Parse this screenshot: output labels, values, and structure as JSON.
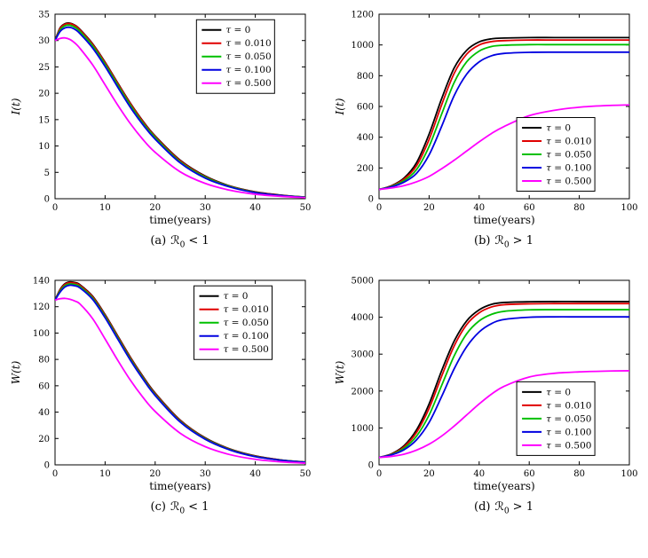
{
  "page": {
    "background": "#ffffff"
  },
  "colors": {
    "tau0": "#000000",
    "tau010": "#e00000",
    "tau050": "#00c000",
    "tau100": "#0000e0",
    "tau500": "#ff00ff"
  },
  "chart_data": [
    {
      "id": "a",
      "type": "line",
      "caption": {
        "prefix": "(a)",
        "symbol": "ℛ",
        "sub": "0",
        "rest": "< 1"
      },
      "xlabel": "time(years)",
      "ylabel": "I(t)",
      "xlim": [
        0,
        50
      ],
      "ylim": [
        0,
        35
      ],
      "xticks": [
        0,
        10,
        20,
        30,
        40,
        50
      ],
      "yticks": [
        0,
        5,
        10,
        15,
        20,
        25,
        30,
        35
      ],
      "legend": {
        "position": "top-right",
        "x": 0.565,
        "y": 0.03
      },
      "x": [
        0,
        1,
        2,
        3,
        4,
        5,
        7.5,
        10,
        12.5,
        15,
        17.5,
        20,
        25,
        30,
        35,
        40,
        45,
        50
      ],
      "series": [
        {
          "name": "τ = 0",
          "color": "#000000",
          "values": [
            30,
            32.4,
            33.2,
            33.3,
            32.9,
            32.1,
            29.4,
            25.9,
            22.0,
            18.2,
            14.8,
            11.9,
            7.3,
            4.3,
            2.4,
            1.3,
            0.7,
            0.3
          ]
        },
        {
          "name": "τ = 0.010",
          "color": "#e00000",
          "values": [
            30,
            32.3,
            33.1,
            33.2,
            32.8,
            32.0,
            29.3,
            25.8,
            21.9,
            18.1,
            14.7,
            11.8,
            7.2,
            4.2,
            2.35,
            1.25,
            0.65,
            0.3
          ]
        },
        {
          "name": "τ = 0.050",
          "color": "#00c000",
          "values": [
            30,
            32.0,
            32.8,
            32.9,
            32.5,
            31.7,
            29.0,
            25.5,
            21.6,
            17.8,
            14.4,
            11.6,
            7.0,
            4.1,
            2.3,
            1.2,
            0.6,
            0.3
          ]
        },
        {
          "name": "τ = 0.100",
          "color": "#0000e0",
          "values": [
            30,
            31.7,
            32.4,
            32.5,
            32.1,
            31.3,
            28.6,
            25.1,
            21.2,
            17.4,
            14.1,
            11.3,
            6.8,
            3.9,
            2.2,
            1.15,
            0.6,
            0.25
          ]
        },
        {
          "name": "τ = 0.500",
          "color": "#ff00ff",
          "values": [
            30,
            30.4,
            30.5,
            30.2,
            29.5,
            28.5,
            25.4,
            21.6,
            17.8,
            14.3,
            11.3,
            8.8,
            5.1,
            2.9,
            1.6,
            0.85,
            0.45,
            0.2
          ]
        }
      ]
    },
    {
      "id": "b",
      "type": "line",
      "caption": {
        "prefix": "(b)",
        "symbol": "ℛ",
        "sub": "0",
        "rest": "> 1"
      },
      "xlabel": "time(years)",
      "ylabel": "I(t)",
      "xlim": [
        0,
        100
      ],
      "ylim": [
        0,
        1200
      ],
      "xticks": [
        0,
        20,
        40,
        60,
        80,
        100
      ],
      "yticks": [
        0,
        200,
        400,
        600,
        800,
        1000,
        1200
      ],
      "legend": {
        "position": "right-lower",
        "x": 0.55,
        "y": 0.56
      },
      "x": [
        0,
        5,
        10,
        15,
        20,
        25,
        30,
        35,
        40,
        45,
        50,
        60,
        70,
        80,
        90,
        100
      ],
      "series": [
        {
          "name": "τ = 0",
          "color": "#000000",
          "values": [
            60,
            85,
            135,
            235,
            420,
            650,
            850,
            965,
            1020,
            1040,
            1045,
            1048,
            1048,
            1048,
            1048,
            1048
          ]
        },
        {
          "name": "τ = 0.010",
          "color": "#e00000",
          "values": [
            60,
            83,
            128,
            215,
            385,
            610,
            815,
            940,
            1000,
            1022,
            1028,
            1032,
            1032,
            1032,
            1032,
            1032
          ]
        },
        {
          "name": "τ = 0.050",
          "color": "#00c000",
          "values": [
            60,
            80,
            118,
            190,
            340,
            550,
            755,
            890,
            960,
            990,
            998,
            1002,
            1002,
            1002,
            1002,
            1002
          ]
        },
        {
          "name": "τ = 0.100",
          "color": "#0000e0",
          "values": [
            60,
            77,
            108,
            165,
            285,
            470,
            670,
            810,
            890,
            930,
            945,
            952,
            953,
            953,
            953,
            953
          ]
        },
        {
          "name": "τ = 0.500",
          "color": "#ff00ff",
          "values": [
            60,
            70,
            85,
            110,
            145,
            195,
            250,
            310,
            370,
            425,
            470,
            540,
            575,
            595,
            605,
            610
          ]
        }
      ]
    },
    {
      "id": "c",
      "type": "line",
      "caption": {
        "prefix": "(c)",
        "symbol": "ℛ",
        "sub": "0",
        "rest": "< 1"
      },
      "xlabel": "time(years)",
      "ylabel": "W(t)",
      "xlim": [
        0,
        50
      ],
      "ylim": [
        0,
        140
      ],
      "xticks": [
        0,
        10,
        20,
        30,
        40,
        50
      ],
      "yticks": [
        0,
        20,
        40,
        60,
        80,
        100,
        120,
        140
      ],
      "legend": {
        "position": "top-right",
        "x": 0.555,
        "y": 0.03
      },
      "x": [
        0,
        1,
        2,
        3,
        4,
        5,
        7.5,
        10,
        12.5,
        15,
        17.5,
        20,
        25,
        30,
        35,
        40,
        45,
        50
      ],
      "series": [
        {
          "name": "τ = 0",
          "color": "#000000",
          "values": [
            125,
            133,
            137.5,
            138.8,
            138.3,
            136.6,
            128,
            114,
            98,
            82,
            67.5,
            54.5,
            34,
            20.5,
            12,
            6.8,
            3.8,
            2.1
          ]
        },
        {
          "name": "τ = 0.010",
          "color": "#e00000",
          "values": [
            125,
            132.6,
            137,
            138.3,
            137.8,
            136.1,
            127.5,
            113.5,
            97.5,
            81.5,
            67,
            54,
            33.6,
            20.2,
            11.8,
            6.6,
            3.7,
            2.0
          ]
        },
        {
          "name": "τ = 0.050",
          "color": "#00c000",
          "values": [
            125,
            131.8,
            136,
            137.3,
            136.8,
            135.2,
            126.6,
            112.6,
            96.6,
            80.6,
            66.2,
            53.3,
            33,
            19.8,
            11.5,
            6.4,
            3.6,
            2.0
          ]
        },
        {
          "name": "τ = 0.100",
          "color": "#0000e0",
          "values": [
            125,
            131,
            135,
            136.3,
            135.8,
            134.2,
            125.6,
            111.6,
            95.6,
            79.7,
            65.4,
            52.6,
            32.5,
            19.4,
            11.2,
            6.2,
            3.5,
            1.9
          ]
        },
        {
          "name": "τ = 0.500",
          "color": "#ff00ff",
          "values": [
            125,
            126,
            126.3,
            125.6,
            124.2,
            122,
            111,
            95.5,
            79.5,
            64.5,
            51.5,
            40.5,
            24,
            13.8,
            7.7,
            4.2,
            2.3,
            1.3
          ]
        }
      ]
    },
    {
      "id": "d",
      "type": "line",
      "caption": {
        "prefix": "(d)",
        "symbol": "ℛ",
        "sub": "0",
        "rest": "> 1"
      },
      "xlabel": "time(years)",
      "ylabel": "W(t)",
      "xlim": [
        0,
        100
      ],
      "ylim": [
        0,
        5000
      ],
      "xticks": [
        0,
        20,
        40,
        60,
        80,
        100
      ],
      "yticks": [
        0,
        1000,
        2000,
        3000,
        4000,
        5000
      ],
      "legend": {
        "position": "right-lower",
        "x": 0.55,
        "y": 0.55
      },
      "x": [
        0,
        5,
        10,
        15,
        20,
        25,
        30,
        35,
        40,
        45,
        50,
        60,
        70,
        80,
        90,
        100
      ],
      "series": [
        {
          "name": "τ = 0",
          "color": "#000000",
          "values": [
            200,
            300,
            520,
            950,
            1650,
            2550,
            3350,
            3900,
            4200,
            4350,
            4400,
            4420,
            4425,
            4425,
            4425,
            4425
          ]
        },
        {
          "name": "τ = 0.010",
          "color": "#e00000",
          "values": [
            200,
            290,
            490,
            880,
            1530,
            2400,
            3220,
            3800,
            4120,
            4280,
            4340,
            4365,
            4370,
            4370,
            4370,
            4370
          ]
        },
        {
          "name": "τ = 0.050",
          "color": "#00c000",
          "values": [
            200,
            280,
            450,
            780,
            1350,
            2150,
            2950,
            3550,
            3900,
            4080,
            4160,
            4200,
            4205,
            4205,
            4205,
            4205
          ]
        },
        {
          "name": "τ = 0.100",
          "color": "#0000e0",
          "values": [
            200,
            270,
            410,
            680,
            1150,
            1850,
            2600,
            3200,
            3600,
            3830,
            3940,
            4000,
            4010,
            4010,
            4010,
            4010
          ]
        },
        {
          "name": "τ = 0.500",
          "color": "#ff00ff",
          "values": [
            200,
            230,
            290,
            400,
            560,
            780,
            1050,
            1350,
            1650,
            1920,
            2130,
            2380,
            2480,
            2520,
            2540,
            2550
          ]
        }
      ]
    }
  ]
}
